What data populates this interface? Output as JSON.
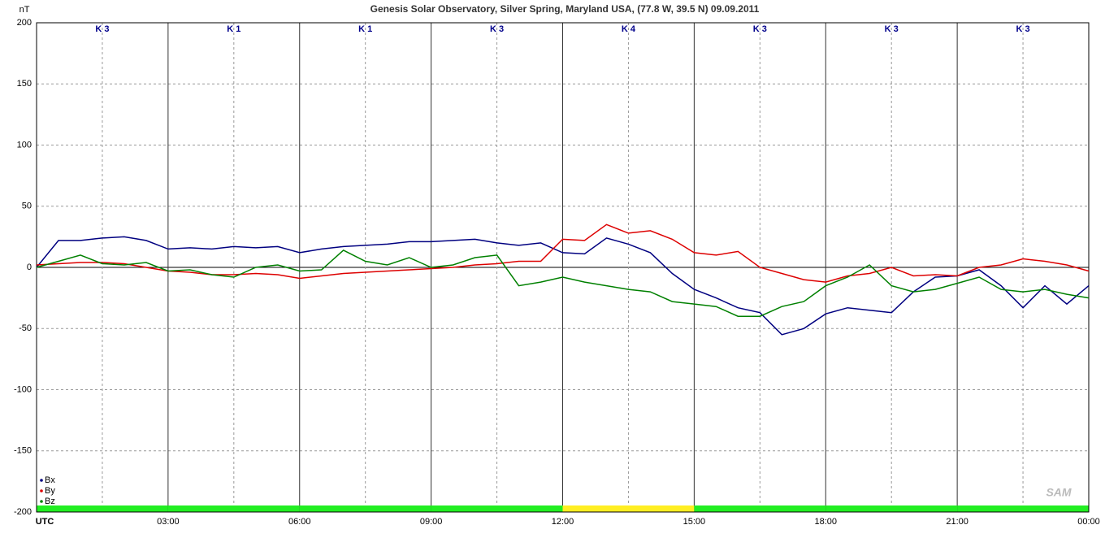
{
  "chart_data": {
    "type": "line",
    "title": "Genesis Solar Observatory, Silver Spring, Maryland USA, (77.8 W, 39.5 N)  09.09.2011",
    "y_label": "nT",
    "logo": "SAM",
    "x": [
      0,
      0.5,
      1,
      1.5,
      2,
      2.5,
      3,
      3.5,
      4,
      4.5,
      5,
      5.5,
      6,
      6.5,
      7,
      7.5,
      8,
      8.5,
      9,
      9.5,
      10,
      10.5,
      11,
      11.5,
      12,
      12.5,
      13,
      13.5,
      14,
      14.5,
      15,
      15.5,
      16,
      16.5,
      17,
      17.5,
      18,
      18.5,
      19,
      19.5,
      20,
      20.5,
      21,
      21.5,
      22,
      22.5,
      23,
      23.5,
      24
    ],
    "series": [
      {
        "name": "Bx",
        "color": "#000080",
        "values": [
          0,
          22,
          22,
          24,
          25,
          22,
          15,
          16,
          15,
          17,
          16,
          17,
          12,
          15,
          17,
          18,
          19,
          21,
          21,
          22,
          23,
          20,
          18,
          20,
          12,
          11,
          24,
          19,
          12,
          -5,
          -18,
          -25,
          -33,
          -37,
          -55,
          -50,
          -38,
          -33,
          -35,
          -37,
          -20,
          -8,
          -7,
          -2,
          -15,
          -33,
          -15,
          -30,
          -15
        ]
      },
      {
        "name": "By",
        "color": "#dd0000",
        "values": [
          2,
          3,
          4,
          4,
          3,
          0,
          -3,
          -4,
          -6,
          -6,
          -5,
          -6,
          -9,
          -7,
          -5,
          -4,
          -3,
          -2,
          -1,
          0,
          2,
          3,
          5,
          5,
          23,
          22,
          35,
          28,
          30,
          23,
          12,
          10,
          13,
          0,
          -5,
          -10,
          -12,
          -7,
          -5,
          0,
          -7,
          -6,
          -7,
          0,
          2,
          7,
          5,
          2,
          -3
        ]
      },
      {
        "name": "Bz",
        "color": "#008000",
        "values": [
          0,
          5,
          10,
          3,
          2,
          4,
          -3,
          -2,
          -6,
          -8,
          0,
          2,
          -3,
          -2,
          14,
          5,
          2,
          8,
          0,
          2,
          8,
          10,
          -15,
          -12,
          -8,
          -12,
          -15,
          -18,
          -20,
          -28,
          -30,
          -32,
          -40,
          -40,
          -32,
          -28,
          -15,
          -8,
          2,
          -15,
          -20,
          -18,
          -13,
          -8,
          -18,
          -20,
          -18,
          -22,
          -25
        ]
      }
    ],
    "k_indices": [
      "K 3",
      "K 1",
      "K 1",
      "K 3",
      "K 4",
      "K 3",
      "K 3",
      "K 3"
    ],
    "k_bar_colors": [
      "#22ee22",
      "#22ee22",
      "#22ee22",
      "#22ee22",
      "#ffee22",
      "#22ee22",
      "#22ee22",
      "#22ee22"
    ],
    "xlim": [
      0,
      24
    ],
    "xticks": [
      {
        "value": 0,
        "label": "UTC"
      },
      {
        "value": 3,
        "label": "03:00"
      },
      {
        "value": 6,
        "label": "06:00"
      },
      {
        "value": 9,
        "label": "09:00"
      },
      {
        "value": 12,
        "label": "12:00"
      },
      {
        "value": 15,
        "label": "15:00"
      },
      {
        "value": 18,
        "label": "18:00"
      },
      {
        "value": 21,
        "label": "21:00"
      },
      {
        "value": 24,
        "label": "00:00"
      }
    ],
    "ylim": [
      -200,
      200
    ],
    "yticks": [
      -200,
      -150,
      -100,
      -50,
      0,
      50,
      100,
      150,
      200
    ],
    "grid": true,
    "legend": "bottom-left"
  }
}
